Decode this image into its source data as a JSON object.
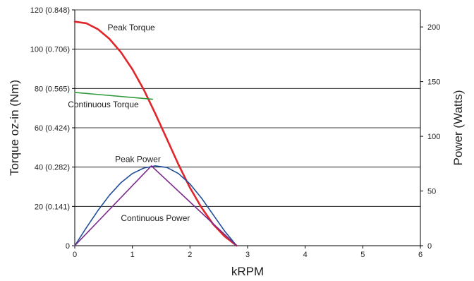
{
  "chart_data": {
    "type": "line",
    "x_axis": {
      "label": "kRPM",
      "range": [
        0,
        6
      ],
      "ticks": [
        0,
        1,
        2,
        3,
        4,
        5,
        6
      ],
      "tick_labels": [
        "0",
        "1",
        "2",
        "3",
        "4",
        "5",
        "6"
      ]
    },
    "y_left_axis": {
      "label": "Torque oz-in (Nm)",
      "range": [
        0,
        120
      ],
      "ticks": [
        0,
        20,
        40,
        60,
        80,
        100,
        120
      ],
      "tick_labels": [
        "0",
        "20 (0.141)",
        "40 (0.282)",
        "60 (0.424)",
        "80 (0.565)",
        "100 (0.706)",
        "120 (0.848)"
      ]
    },
    "y_right_axis": {
      "label": "Power (Watts)",
      "range": [
        0,
        215.6
      ],
      "ticks": [
        0,
        50,
        100,
        150,
        200
      ],
      "tick_labels": [
        "0",
        "50",
        "100",
        "150",
        "200"
      ]
    },
    "grid": "horizontal",
    "series": [
      {
        "name": "Peak Torque",
        "axis": "left",
        "color": "#e0262a",
        "x": [
          0,
          0.2,
          0.4,
          0.6,
          0.8,
          1.0,
          1.2,
          1.4,
          1.6,
          1.8,
          2.0,
          2.2,
          2.4,
          2.6,
          2.81
        ],
        "y": [
          114,
          113.2,
          110.2,
          105.3,
          98.5,
          89.8,
          79.3,
          67.1,
          54.2,
          41.3,
          29.5,
          19.4,
          11.0,
          4.8,
          0
        ]
      },
      {
        "name": "Continuous Torque",
        "axis": "left",
        "color": "#2f9a3c",
        "x": [
          0,
          1.35
        ],
        "y": [
          78,
          74.5
        ]
      },
      {
        "name": "Peak Power",
        "axis": "right",
        "color": "#1f4e9a",
        "x": [
          0,
          0.2,
          0.4,
          0.6,
          0.8,
          1.0,
          1.2,
          1.4,
          1.6,
          1.8,
          2.0,
          2.2,
          2.4,
          2.6,
          2.81
        ],
        "y": [
          0,
          16.3,
          32.0,
          46.0,
          57.5,
          66.0,
          71.0,
          73.0,
          71.5,
          66.0,
          56.5,
          43.5,
          28.5,
          13.5,
          0
        ]
      },
      {
        "name": "Continuous Power",
        "axis": "right",
        "color": "#7b2a8c",
        "x": [
          0,
          1.33,
          2.81
        ],
        "y": [
          0,
          73.0,
          0
        ]
      }
    ],
    "annotations": [
      {
        "text": "Peak Torque",
        "x": 0.57,
        "y": 109.5,
        "axis": "left",
        "color": "#222222"
      },
      {
        "text": "Continuous Torque",
        "x": -0.12,
        "y": 70.5,
        "axis": "left",
        "color": "#222222"
      },
      {
        "text": "Peak Power",
        "x": 0.7,
        "y": 76.5,
        "axis": "right",
        "color": "#222222"
      },
      {
        "text": "Continuous Power",
        "x": 0.8,
        "y": 22.7,
        "axis": "right",
        "color": "#222222"
      }
    ]
  }
}
